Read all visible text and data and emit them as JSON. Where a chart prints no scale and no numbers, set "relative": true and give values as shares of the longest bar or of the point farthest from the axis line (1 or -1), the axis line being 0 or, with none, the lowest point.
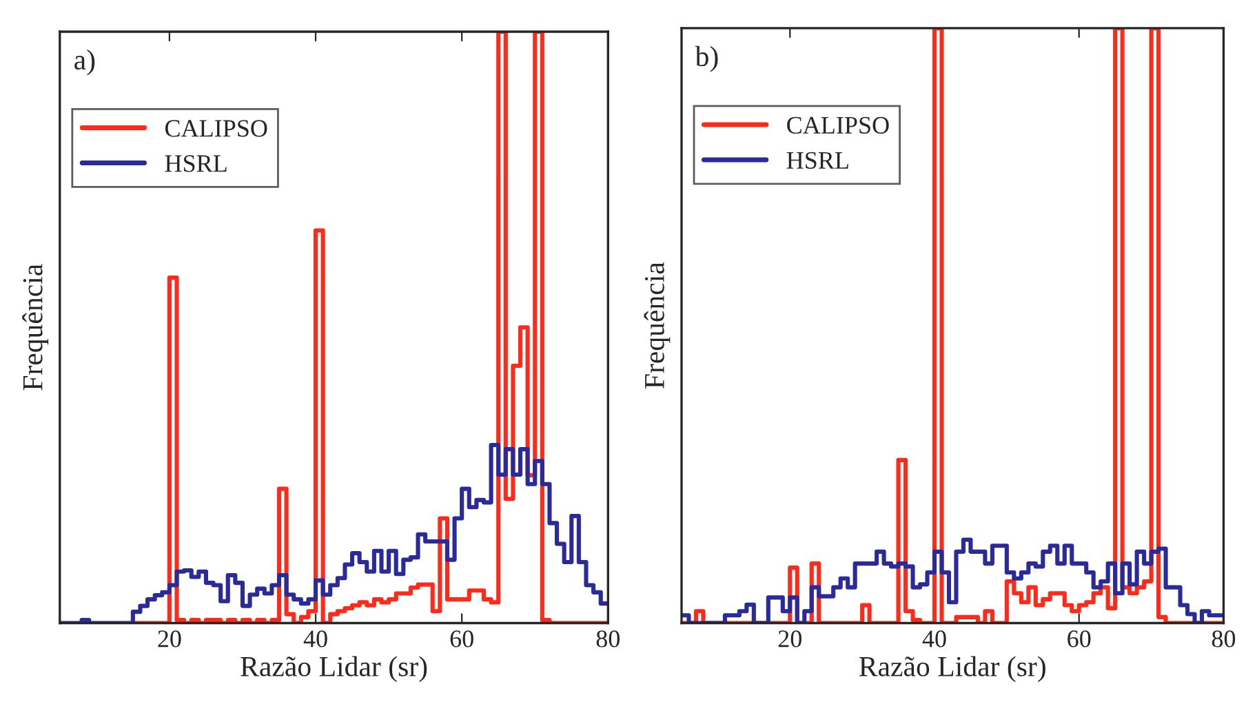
{
  "chart_data": [
    {
      "type": "step",
      "relative": true,
      "xlabel": "Razão Lidar (sr)",
      "ylabel": "Frequência",
      "annotations": [
        "a)"
      ],
      "legend": "top left",
      "grid": false,
      "xlim": [
        5,
        80
      ],
      "xticks": [
        20,
        40,
        60,
        80
      ],
      "x": [
        5,
        6,
        7,
        8,
        9,
        10,
        11,
        12,
        13,
        14,
        15,
        16,
        17,
        18,
        19,
        20,
        21,
        22,
        23,
        24,
        25,
        26,
        27,
        28,
        29,
        30,
        31,
        32,
        33,
        34,
        35,
        36,
        37,
        38,
        39,
        40,
        41,
        42,
        43,
        44,
        45,
        46,
        47,
        48,
        49,
        50,
        51,
        52,
        53,
        54,
        55,
        56,
        57,
        58,
        59,
        60,
        61,
        62,
        63,
        64,
        65,
        66,
        67,
        68,
        69,
        70,
        71,
        72,
        73,
        74,
        75,
        76,
        77,
        78,
        79,
        80
      ],
      "series": [
        {
          "name": "CALIPSO",
          "color": "#ff2a1a",
          "values": [
            null,
            null,
            null,
            null,
            null,
            null,
            null,
            null,
            null,
            null,
            0,
            0,
            0,
            0,
            0,
            0.584,
            0.005,
            0,
            0.005,
            0,
            0.005,
            0.005,
            0,
            0.005,
            0,
            0.005,
            0,
            0.005,
            0,
            0.005,
            0.227,
            0.015,
            0,
            0.01,
            0.02,
            0.664,
            0,
            0.015,
            0.02,
            0.025,
            0.03,
            0.035,
            0.03,
            0.04,
            0.035,
            0.04,
            0.05,
            0.05,
            0.06,
            0.065,
            0.065,
            0.02,
            0.177,
            0.04,
            0.04,
            0.04,
            0.055,
            0.055,
            0.04,
            0.035,
            1,
            0.21,
            0.435,
            0.5,
            0.25,
            1,
            0.005,
            0,
            0,
            0,
            0,
            0,
            0,
            0,
            0,
            0
          ]
        },
        {
          "name": "HSRL",
          "color": "#2b2a9a",
          "values": [
            0,
            0,
            0,
            0.005,
            0,
            0,
            0,
            0,
            0,
            0,
            0.019,
            0.029,
            0.04,
            0.047,
            0.052,
            0.064,
            0.087,
            0.089,
            0.078,
            0.087,
            0.068,
            0.064,
            0.037,
            0.081,
            0.068,
            0.029,
            0.048,
            0.058,
            0.05,
            0.064,
            0.081,
            0.048,
            0.04,
            0.033,
            0.04,
            0.072,
            0.048,
            0.064,
            0.076,
            0.099,
            0.118,
            0.103,
            0.087,
            0.122,
            0.087,
            0.122,
            0.083,
            0.107,
            0.111,
            0.15,
            0.138,
            0.138,
            0.138,
            0.107,
            0.177,
            0.227,
            0.196,
            0.208,
            0.204,
            0.301,
            0.251,
            0.294,
            0.251,
            0.294,
            0.235,
            0.274,
            0.235,
            0.169,
            0.134,
            0.103,
            0.181,
            0.103,
            0.064,
            0.052,
            0.033,
            0.033
          ]
        }
      ]
    },
    {
      "type": "step",
      "relative": true,
      "xlabel": "Razão Lidar (sr)",
      "ylabel": "Frequência",
      "annotations": [
        "b)"
      ],
      "legend": "top left",
      "grid": false,
      "xlim": [
        5,
        80
      ],
      "xticks": [
        20,
        40,
        60,
        80
      ],
      "x": [
        5,
        6,
        7,
        8,
        9,
        10,
        11,
        12,
        13,
        14,
        15,
        16,
        17,
        18,
        19,
        20,
        21,
        22,
        23,
        24,
        25,
        26,
        27,
        28,
        29,
        30,
        31,
        32,
        33,
        34,
        35,
        36,
        37,
        38,
        39,
        40,
        41,
        42,
        43,
        44,
        45,
        46,
        47,
        48,
        49,
        50,
        51,
        52,
        53,
        54,
        55,
        56,
        57,
        58,
        59,
        60,
        61,
        62,
        63,
        64,
        65,
        66,
        67,
        68,
        69,
        70,
        71,
        72,
        73,
        74,
        75,
        76,
        77,
        78,
        79,
        80
      ],
      "series": [
        {
          "name": "CALIPSO",
          "color": "#ff2a1a",
          "values": [
            0,
            0,
            0.02,
            0,
            0,
            0,
            0,
            0,
            0,
            0,
            0,
            0,
            0,
            0,
            0,
            0.093,
            0,
            0,
            0.1,
            0,
            0,
            0,
            0,
            0,
            0,
            0.03,
            0,
            0,
            0,
            0,
            0.274,
            0.02,
            0.005,
            0,
            0,
            1,
            0,
            0,
            0.01,
            0.01,
            0.01,
            0,
            0.02,
            0,
            0,
            0.07,
            0.05,
            0.035,
            0.06,
            0.03,
            0.04,
            0.05,
            0.05,
            0.03,
            0.02,
            0.03,
            0.035,
            0.05,
            0.06,
            0.025,
            1,
            0.06,
            0.05,
            0.06,
            0.07,
            1,
            0.01,
            0,
            0,
            0,
            0,
            0,
            0,
            0,
            0,
            0
          ]
        },
        {
          "name": "HSRL",
          "color": "#2b2a9a",
          "values": [
            0.013,
            0,
            0,
            0,
            0,
            0,
            0.013,
            0.013,
            0.02,
            0.031,
            0,
            0,
            0.043,
            0.043,
            0.02,
            0.043,
            0,
            0.02,
            0.06,
            0.045,
            0.045,
            0.06,
            0.075,
            0.06,
            0.1,
            0.1,
            0.1,
            0.12,
            0.1,
            0.095,
            0.1,
            0.095,
            0.06,
            0.065,
            0.085,
            0.12,
            0.085,
            0.035,
            0.12,
            0.14,
            0.12,
            0.12,
            0.1,
            0.13,
            0.13,
            0.085,
            0.075,
            0.085,
            0.1,
            0.095,
            0.12,
            0.13,
            0.1,
            0.13,
            0.1,
            0.1,
            0.085,
            0.06,
            0.07,
            0.1,
            0.05,
            0.1,
            0.065,
            0.12,
            0.1,
            0.12,
            0.125,
            0.06,
            0.06,
            0.03,
            0.015,
            0,
            0.02,
            0.013,
            0.013,
            0.013
          ]
        }
      ]
    }
  ]
}
